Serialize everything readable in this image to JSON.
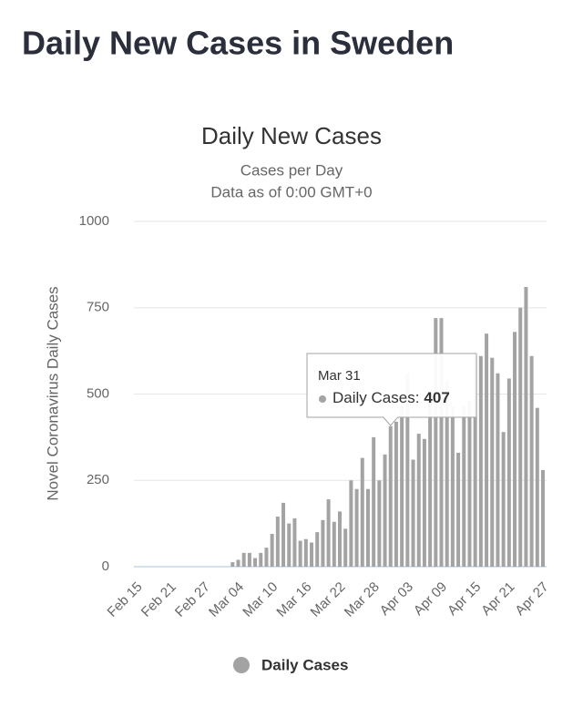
{
  "page_title": "Daily New Cases in Sweden",
  "chart_data": {
    "type": "bar",
    "title": "Daily New Cases",
    "subtitle": [
      "Cases per Day",
      "Data as of 0:00 GMT+0"
    ],
    "ylabel": "Novel Coronavirus Daily Cases",
    "categories": [
      "Feb 15",
      null,
      null,
      null,
      null,
      null,
      "Feb 21",
      null,
      null,
      null,
      null,
      null,
      "Feb 27",
      null,
      null,
      null,
      null,
      null,
      "Mar 04",
      null,
      null,
      null,
      null,
      null,
      "Mar 10",
      null,
      null,
      null,
      null,
      null,
      "Mar 16",
      null,
      null,
      null,
      null,
      null,
      "Mar 22",
      null,
      null,
      null,
      null,
      null,
      "Mar 28",
      null,
      null,
      null,
      null,
      null,
      "Apr 03",
      null,
      null,
      null,
      null,
      null,
      "Apr 09",
      null,
      null,
      null,
      null,
      null,
      "Apr 15",
      null,
      null,
      null,
      null,
      null,
      "Apr 21",
      null,
      null,
      null,
      null,
      null,
      "Apr 27"
    ],
    "series": [
      {
        "name": "Daily Cases",
        "color": "#a3a3a3",
        "values": [
          0,
          0,
          0,
          0,
          0,
          0,
          0,
          0,
          0,
          0,
          0,
          0,
          0,
          0,
          0,
          0,
          0,
          13,
          20,
          40,
          40,
          25,
          40,
          55,
          95,
          145,
          185,
          125,
          140,
          75,
          80,
          70,
          100,
          135,
          195,
          130,
          160,
          110,
          250,
          225,
          315,
          225,
          375,
          250,
          325,
          407,
          420,
          465,
          560,
          310,
          385,
          370,
          480,
          720,
          720,
          540,
          465,
          330,
          465,
          480,
          610,
          610,
          675,
          605,
          560,
          390,
          545,
          680,
          750,
          810,
          610,
          460,
          280
        ]
      }
    ],
    "ylim": [
      0,
      1000
    ],
    "yticks": [
      0,
      250,
      500,
      750,
      1000
    ],
    "grid": true,
    "tooltip": {
      "x": "Mar 31",
      "label": "Daily Cases:",
      "value": 407
    }
  }
}
